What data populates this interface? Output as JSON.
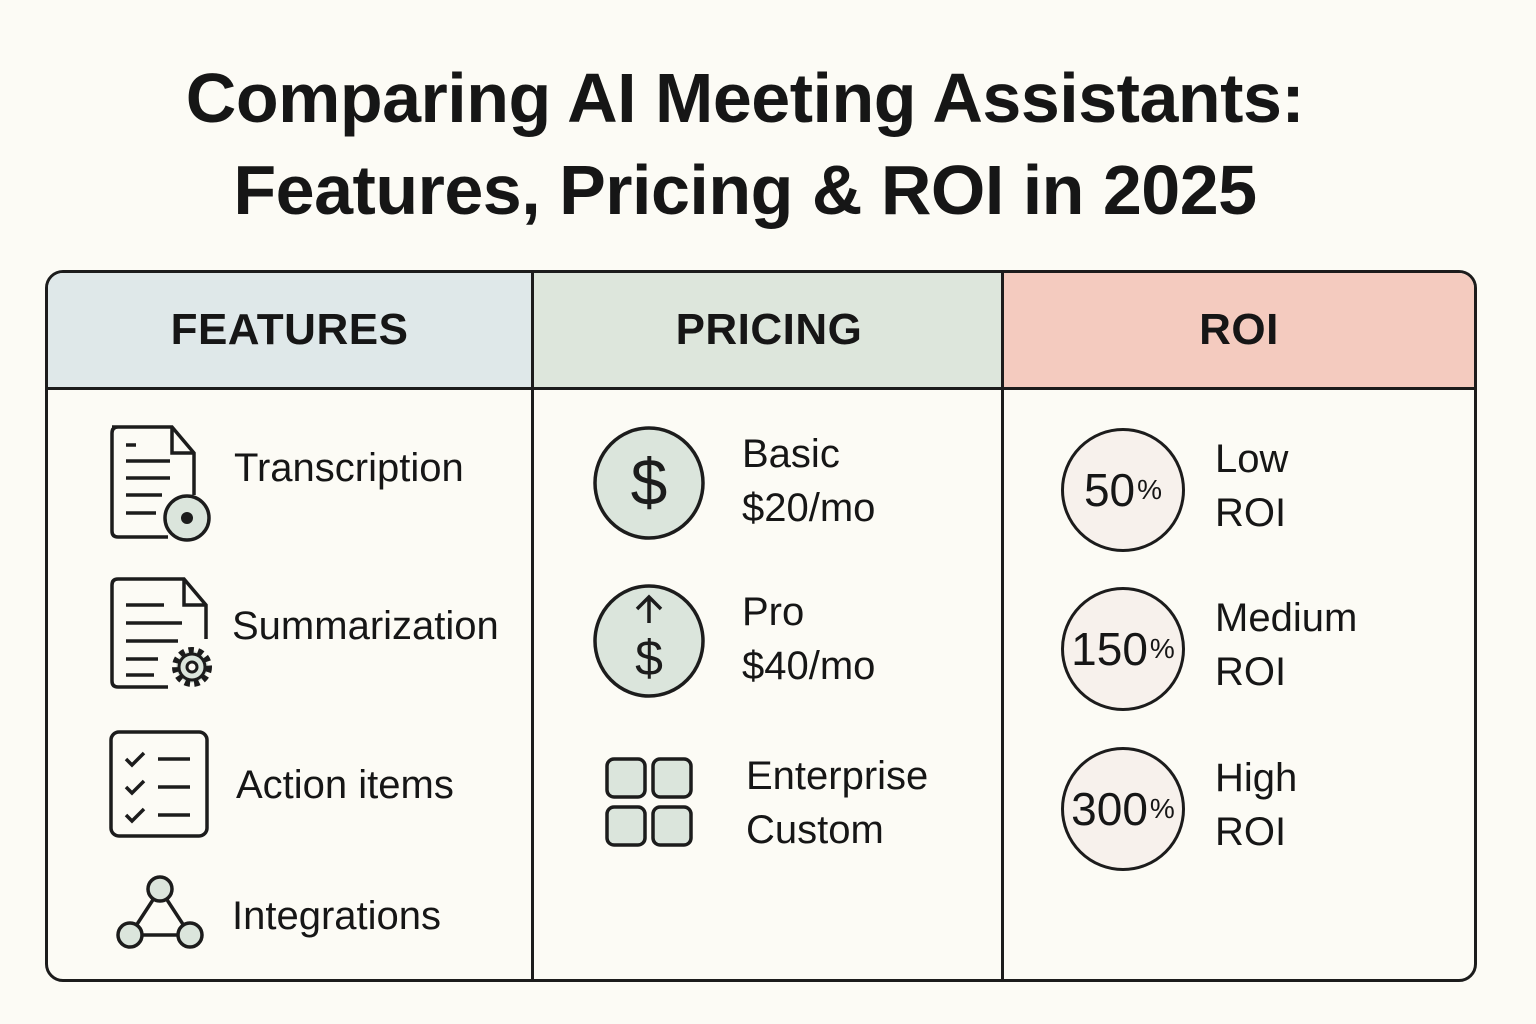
{
  "title": {
    "line1": "Comparing AI Meeting Assistants:",
    "line2": "Features, Pricing & ROI in 2025"
  },
  "colors": {
    "features_header": "#dfe8e9",
    "pricing_header": "#dde6dc",
    "roi_header": "#f4cbbf",
    "icon_fill": "#dbe5dc",
    "roi_circle_fill": "#f7f1ec"
  },
  "features": {
    "header": "FEATURES",
    "items": [
      {
        "label": "Transcription",
        "icon": "document-record-icon"
      },
      {
        "label": "Summarization",
        "icon": "document-gear-icon"
      },
      {
        "label": "Action items",
        "icon": "checklist-icon"
      },
      {
        "label": "Integrations",
        "icon": "network-icon"
      }
    ]
  },
  "pricing": {
    "header": "PRICING",
    "items": [
      {
        "name": "Basic",
        "price": "$20/mo",
        "icon": "dollar-icon"
      },
      {
        "name": "Pro",
        "price": "$40/mo",
        "icon": "dollar-up-icon"
      },
      {
        "name": "Enterprise",
        "price": "Custom",
        "icon": "grid-icon"
      }
    ]
  },
  "roi": {
    "header": "ROI",
    "items": [
      {
        "value": "50",
        "unit": "%",
        "level": "Low",
        "label": "ROI"
      },
      {
        "value": "150",
        "unit": "%",
        "level": "Medium",
        "label": "ROI"
      },
      {
        "value": "300",
        "unit": "%",
        "level": "High",
        "label": "ROI"
      }
    ]
  }
}
